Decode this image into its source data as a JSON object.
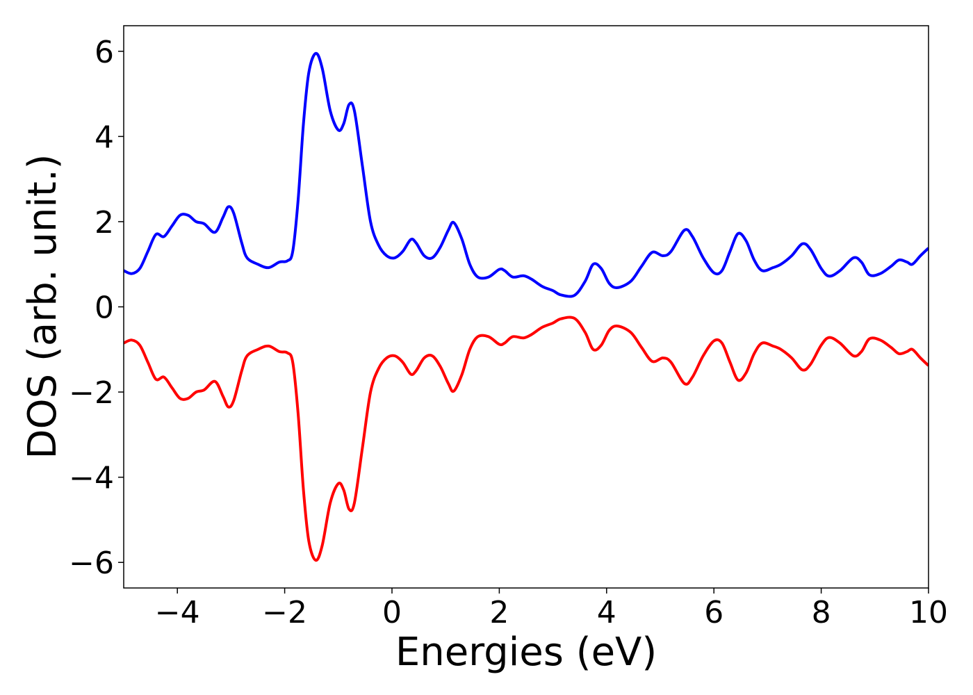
{
  "chart_data": {
    "type": "line",
    "x_label": "Energies (eV)",
    "y_label": "DOS (arb. unit.)",
    "x": [
      -5,
      -4.85,
      -4.7,
      -4.55,
      -4.4,
      -4.25,
      -4.1,
      -3.95,
      -3.8,
      -3.65,
      -3.5,
      -3.3,
      -3.15,
      -3.05,
      -2.95,
      -2.8,
      -2.7,
      -2.5,
      -2.3,
      -2.1,
      -1.95,
      -1.85,
      -1.75,
      -1.65,
      -1.55,
      -1.42,
      -1.3,
      -1.15,
      -1.0,
      -0.9,
      -0.8,
      -0.7,
      -0.55,
      -0.4,
      -0.25,
      -0.1,
      0.05,
      0.2,
      0.35,
      0.45,
      0.6,
      0.75,
      0.9,
      1.05,
      1.15,
      1.3,
      1.45,
      1.6,
      1.8,
      2.0,
      2.1,
      2.25,
      2.45,
      2.6,
      2.8,
      3.0,
      3.15,
      3.4,
      3.6,
      3.75,
      3.9,
      4.05,
      4.2,
      4.45,
      4.65,
      4.85,
      5.05,
      5.2,
      5.45,
      5.6,
      5.8,
      6.0,
      6.15,
      6.3,
      6.45,
      6.6,
      6.75,
      6.9,
      7.1,
      7.25,
      7.45,
      7.65,
      7.8,
      8.0,
      8.15,
      8.35,
      8.6,
      8.75,
      8.9,
      9.1,
      9.3,
      9.45,
      9.6,
      9.7,
      9.85,
      10
    ],
    "series": [
      {
        "color": "#0000ff",
        "values": [
          0.85,
          0.78,
          0.9,
          1.3,
          1.7,
          1.65,
          1.9,
          2.15,
          2.15,
          2.0,
          1.95,
          1.75,
          2.1,
          2.35,
          2.2,
          1.5,
          1.15,
          1.0,
          0.92,
          1.05,
          1.08,
          1.3,
          2.5,
          4.3,
          5.5,
          5.95,
          5.6,
          4.6,
          4.15,
          4.3,
          4.75,
          4.6,
          3.3,
          2.0,
          1.45,
          1.2,
          1.15,
          1.3,
          1.58,
          1.5,
          1.2,
          1.15,
          1.4,
          1.8,
          1.98,
          1.6,
          1.0,
          0.7,
          0.7,
          0.88,
          0.85,
          0.7,
          0.73,
          0.65,
          0.48,
          0.38,
          0.28,
          0.27,
          0.6,
          1.0,
          0.9,
          0.55,
          0.45,
          0.6,
          0.95,
          1.28,
          1.2,
          1.3,
          1.8,
          1.65,
          1.15,
          0.8,
          0.85,
          1.3,
          1.72,
          1.55,
          1.1,
          0.85,
          0.92,
          1.0,
          1.2,
          1.48,
          1.35,
          0.9,
          0.72,
          0.85,
          1.15,
          1.05,
          0.75,
          0.78,
          0.95,
          1.1,
          1.05,
          1.0,
          1.2,
          1.38
        ]
      },
      {
        "color": "#ff0000",
        "values": [
          -0.85,
          -0.78,
          -0.9,
          -1.3,
          -1.7,
          -1.65,
          -1.9,
          -2.15,
          -2.15,
          -2.0,
          -1.95,
          -1.75,
          -2.1,
          -2.35,
          -2.2,
          -1.5,
          -1.15,
          -1.0,
          -0.92,
          -1.05,
          -1.08,
          -1.3,
          -2.5,
          -4.3,
          -5.5,
          -5.95,
          -5.6,
          -4.6,
          -4.15,
          -4.3,
          -4.75,
          -4.6,
          -3.3,
          -2.0,
          -1.45,
          -1.2,
          -1.15,
          -1.3,
          -1.58,
          -1.5,
          -1.2,
          -1.15,
          -1.4,
          -1.8,
          -1.98,
          -1.6,
          -1.0,
          -0.7,
          -0.7,
          -0.88,
          -0.85,
          -0.7,
          -0.73,
          -0.65,
          -0.48,
          -0.38,
          -0.28,
          -0.27,
          -0.6,
          -1.0,
          -0.9,
          -0.55,
          -0.45,
          -0.6,
          -0.95,
          -1.28,
          -1.2,
          -1.3,
          -1.8,
          -1.65,
          -1.15,
          -0.8,
          -0.85,
          -1.3,
          -1.72,
          -1.55,
          -1.1,
          -0.85,
          -0.92,
          -1.0,
          -1.2,
          -1.48,
          -1.35,
          -0.9,
          -0.72,
          -0.85,
          -1.15,
          -1.05,
          -0.75,
          -0.78,
          -0.95,
          -1.1,
          -1.05,
          -1.0,
          -1.2,
          -1.38
        ]
      }
    ],
    "xlim": [
      -5,
      10
    ],
    "xticks": [
      {
        "value": -4,
        "label": "−4"
      },
      {
        "value": -2,
        "label": "−2"
      },
      0,
      2,
      4,
      6,
      8,
      10
    ],
    "ylim": [
      -6.6,
      6.6
    ],
    "yticks": [
      {
        "value": -6,
        "label": "−6"
      },
      {
        "value": -4,
        "label": "−4"
      },
      {
        "value": -2,
        "label": "−2"
      },
      0,
      2,
      4,
      6
    ],
    "grid": false
  }
}
